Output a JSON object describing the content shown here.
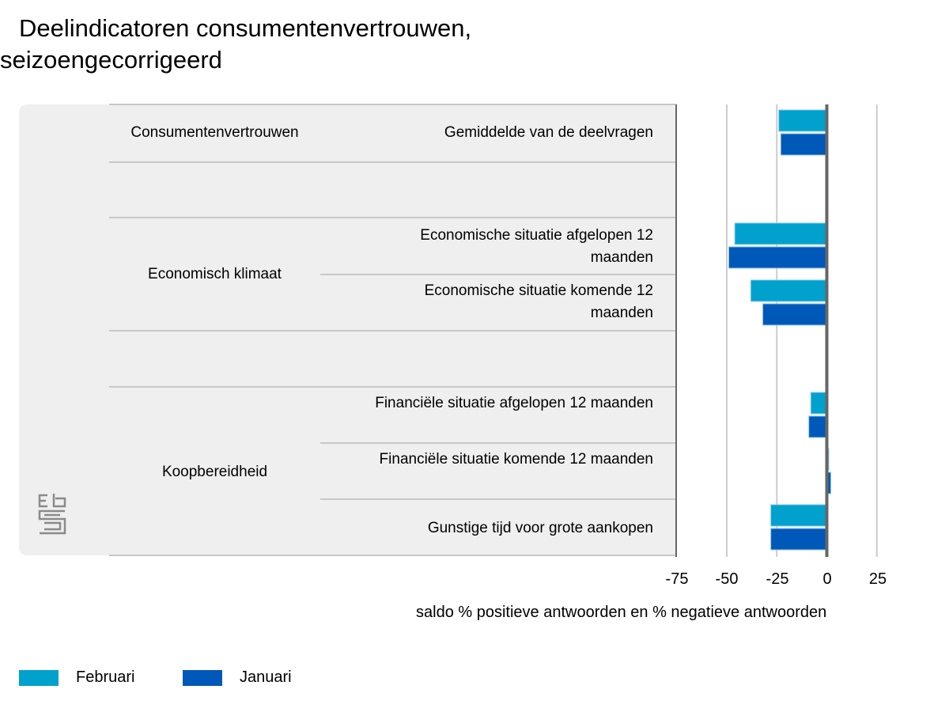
{
  "title_lines": [
    "Deelindicatoren consumentenvertrouwen,",
    "seizoengecorrigeerd"
  ],
  "chart_data": {
    "type": "bar",
    "orientation": "horizontal",
    "title": "Deelindicatoren consumentenvertrouwen, seizoengecorrigeerd",
    "xlabel": "saldo % positieve antwoorden en % negatieve antwoorden",
    "xlim": [
      -75,
      30
    ],
    "ticks": [
      "-75",
      "-50",
      "-25",
      "0",
      "25"
    ],
    "grid": true,
    "legend_position": "bottom-left",
    "groups": [
      {
        "name": "Consumentenvertrouwen",
        "categories": [
          "Gemiddelde van de deelvragen"
        ]
      },
      {
        "name": "Economisch klimaat",
        "categories": [
          "Economische situatie afgelopen 12 maanden",
          "Economische situatie komende 12 maanden"
        ]
      },
      {
        "name": "Koopbereidheid",
        "categories": [
          "Financiële situatie afgelopen 12 maanden",
          "Financiële situatie komende 12 maanden",
          "Gunstige tijd voor grote aankopen"
        ]
      }
    ],
    "series": [
      {
        "name": "Februari",
        "color": "#00a1cd",
        "values": [
          -24,
          -46,
          -38,
          -8,
          1,
          -28
        ]
      },
      {
        "name": "Januari",
        "color": "#0058b8",
        "values": [
          -23,
          -49,
          -32,
          -9,
          2,
          -28
        ]
      }
    ]
  }
}
